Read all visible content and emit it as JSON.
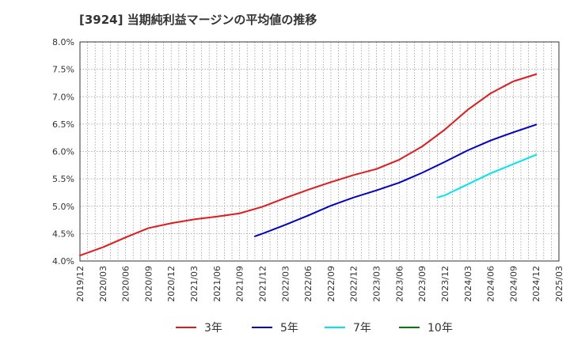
{
  "chart_data": {
    "type": "line",
    "title": "[3924]  当期純利益マージンの平均値の推移",
    "ylim": [
      4.0,
      8.0
    ],
    "xlim": [
      "2019/12",
      "2025/03"
    ],
    "y_ticks": [
      "4.0%",
      "4.5%",
      "5.0%",
      "5.5%",
      "6.0%",
      "6.5%",
      "7.0%",
      "7.5%",
      "8.0%"
    ],
    "x_ticks": [
      "2019/12",
      "2020/03",
      "2020/06",
      "2020/09",
      "2020/12",
      "2021/03",
      "2021/06",
      "2021/09",
      "2021/12",
      "2022/03",
      "2022/06",
      "2022/09",
      "2022/12",
      "2023/03",
      "2023/06",
      "2023/09",
      "2023/12",
      "2024/03",
      "2024/06",
      "2024/09",
      "2024/12",
      "2025/03"
    ],
    "grid": true,
    "legend_position": "bottom",
    "series": [
      {
        "name": "3年",
        "color": "#e31a1c",
        "points": [
          [
            "2019/12",
            4.1
          ],
          [
            "2020/03",
            4.25
          ],
          [
            "2020/06",
            4.43
          ],
          [
            "2020/09",
            4.6
          ],
          [
            "2020/12",
            4.69
          ],
          [
            "2021/03",
            4.76
          ],
          [
            "2021/06",
            4.81
          ],
          [
            "2021/09",
            4.87
          ],
          [
            "2021/12",
            4.99
          ],
          [
            "2022/03",
            5.15
          ],
          [
            "2022/06",
            5.3
          ],
          [
            "2022/09",
            5.44
          ],
          [
            "2022/12",
            5.57
          ],
          [
            "2023/03",
            5.68
          ],
          [
            "2023/06",
            5.85
          ],
          [
            "2023/09",
            6.09
          ],
          [
            "2023/12",
            6.4
          ],
          [
            "2024/03",
            6.76
          ],
          [
            "2024/06",
            7.06
          ],
          [
            "2024/09",
            7.28
          ],
          [
            "2024/12",
            7.41
          ]
        ]
      },
      {
        "name": "5年",
        "color": "#0000cc",
        "points": [
          [
            "2021/11",
            4.45
          ],
          [
            "2021/12",
            4.5
          ],
          [
            "2022/03",
            4.66
          ],
          [
            "2022/06",
            4.83
          ],
          [
            "2022/09",
            5.01
          ],
          [
            "2022/12",
            5.16
          ],
          [
            "2023/03",
            5.29
          ],
          [
            "2023/06",
            5.43
          ],
          [
            "2023/09",
            5.61
          ],
          [
            "2023/12",
            5.81
          ],
          [
            "2024/03",
            6.02
          ],
          [
            "2024/06",
            6.2
          ],
          [
            "2024/09",
            6.35
          ],
          [
            "2024/12",
            6.49
          ]
        ]
      },
      {
        "name": "7年",
        "color": "#00e5ee",
        "points": [
          [
            "2023/11",
            5.16
          ],
          [
            "2023/12",
            5.2
          ],
          [
            "2024/03",
            5.4
          ],
          [
            "2024/06",
            5.6
          ],
          [
            "2024/09",
            5.77
          ],
          [
            "2024/12",
            5.94
          ]
        ]
      },
      {
        "name": "10年",
        "color": "#008000",
        "points": []
      }
    ]
  }
}
